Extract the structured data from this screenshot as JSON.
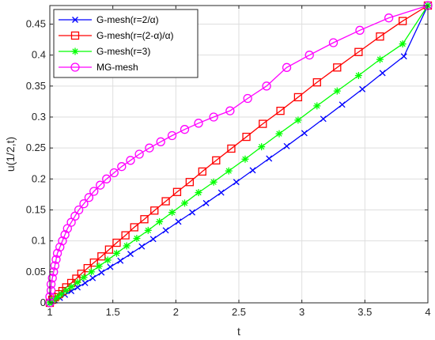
{
  "chart_data": {
    "type": "line",
    "xlabel": "t",
    "ylabel": "u(1/2,t)",
    "xlim": [
      1,
      4
    ],
    "ylim": [
      0,
      0.48
    ],
    "xticks": [
      1,
      1.5,
      2,
      2.5,
      3,
      3.5,
      4
    ],
    "xtick_labels": [
      "1",
      "1.5",
      "2",
      "2.5",
      "3",
      "3.5",
      "4"
    ],
    "yticks": [
      0,
      0.05,
      0.1,
      0.15,
      0.2,
      0.25,
      0.3,
      0.35,
      0.4,
      0.45
    ],
    "ytick_labels": [
      "0",
      "0.05",
      "0.1",
      "0.15",
      "0.2",
      "0.25",
      "0.3",
      "0.35",
      "0.4",
      "0.45"
    ],
    "grid": true,
    "legend_position": "top-left",
    "series": [
      {
        "name": "G-mesh(r=2/α)",
        "color": "#0000ff",
        "marker": "x",
        "x": [
          1.0,
          1.01,
          1.04,
          1.08,
          1.12,
          1.17,
          1.22,
          1.28,
          1.34,
          1.41,
          1.48,
          1.56,
          1.64,
          1.73,
          1.82,
          1.92,
          2.02,
          2.13,
          2.24,
          2.36,
          2.48,
          2.61,
          2.74,
          2.88,
          3.02,
          3.17,
          3.32,
          3.48,
          3.64,
          3.81,
          4.0
        ],
        "y": [
          0.0,
          0.001,
          0.004,
          0.008,
          0.013,
          0.019,
          0.025,
          0.032,
          0.04,
          0.049,
          0.058,
          0.068,
          0.079,
          0.091,
          0.103,
          0.117,
          0.131,
          0.146,
          0.161,
          0.178,
          0.195,
          0.214,
          0.233,
          0.253,
          0.274,
          0.297,
          0.32,
          0.345,
          0.371,
          0.398,
          0.48
        ]
      },
      {
        "name": "G-mesh(r=(2-α)/α)",
        "color": "#ff0000",
        "marker": "square",
        "x": [
          1.0,
          1.02,
          1.04,
          1.07,
          1.1,
          1.13,
          1.17,
          1.21,
          1.25,
          1.3,
          1.35,
          1.41,
          1.47,
          1.53,
          1.6,
          1.67,
          1.75,
          1.83,
          1.92,
          2.01,
          2.11,
          2.21,
          2.32,
          2.44,
          2.56,
          2.69,
          2.83,
          2.97,
          3.12,
          3.28,
          3.45,
          3.62,
          3.8,
          4.0
        ],
        "y": [
          0.0,
          0.005,
          0.009,
          0.014,
          0.019,
          0.025,
          0.032,
          0.039,
          0.047,
          0.056,
          0.065,
          0.075,
          0.086,
          0.097,
          0.109,
          0.122,
          0.135,
          0.149,
          0.164,
          0.179,
          0.195,
          0.212,
          0.23,
          0.249,
          0.268,
          0.289,
          0.31,
          0.332,
          0.356,
          0.38,
          0.405,
          0.43,
          0.455,
          0.48
        ]
      },
      {
        "name": "G-mesh(r=3)",
        "color": "#00ff00",
        "marker": "asterisk",
        "x": [
          1.0,
          1.01,
          1.03,
          1.06,
          1.09,
          1.13,
          1.17,
          1.22,
          1.27,
          1.33,
          1.39,
          1.46,
          1.53,
          1.61,
          1.69,
          1.78,
          1.87,
          1.97,
          2.07,
          2.18,
          2.3,
          2.42,
          2.55,
          2.68,
          2.82,
          2.97,
          3.12,
          3.28,
          3.45,
          3.62,
          3.8,
          4.0
        ],
        "y": [
          0.0,
          0.002,
          0.005,
          0.009,
          0.014,
          0.02,
          0.026,
          0.033,
          0.041,
          0.05,
          0.059,
          0.069,
          0.08,
          0.092,
          0.104,
          0.117,
          0.131,
          0.146,
          0.161,
          0.178,
          0.195,
          0.213,
          0.232,
          0.252,
          0.273,
          0.295,
          0.318,
          0.342,
          0.367,
          0.393,
          0.418,
          0.48
        ]
      },
      {
        "name": "MG-mesh",
        "color": "#ff00ff",
        "marker": "circle",
        "x": [
          1.0,
          1.0,
          1.01,
          1.01,
          1.02,
          1.03,
          1.04,
          1.05,
          1.06,
          1.08,
          1.1,
          1.12,
          1.14,
          1.17,
          1.2,
          1.23,
          1.27,
          1.31,
          1.35,
          1.4,
          1.45,
          1.51,
          1.57,
          1.64,
          1.71,
          1.79,
          1.88,
          1.97,
          2.07,
          2.18,
          2.3,
          2.43,
          2.57,
          2.72,
          2.88,
          3.06,
          3.25,
          3.46,
          3.69,
          4.0
        ],
        "y": [
          0.0,
          0.01,
          0.02,
          0.03,
          0.04,
          0.05,
          0.06,
          0.07,
          0.08,
          0.09,
          0.1,
          0.11,
          0.12,
          0.13,
          0.14,
          0.15,
          0.16,
          0.17,
          0.18,
          0.19,
          0.2,
          0.21,
          0.22,
          0.23,
          0.24,
          0.25,
          0.26,
          0.27,
          0.28,
          0.29,
          0.3,
          0.31,
          0.33,
          0.35,
          0.38,
          0.4,
          0.42,
          0.44,
          0.46,
          0.48
        ]
      }
    ]
  }
}
